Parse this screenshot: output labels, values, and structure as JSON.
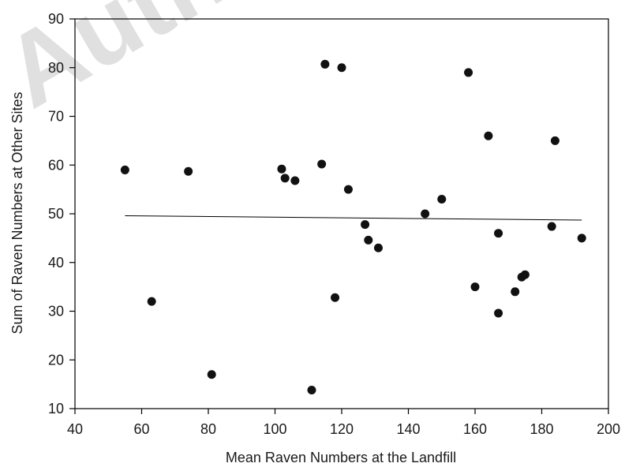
{
  "watermark": "Author's",
  "chart_data": {
    "type": "scatter",
    "xlabel": "Mean Raven Numbers at the Landfill",
    "ylabel": "Sum of Raven Numbers at Other Sites",
    "xlim": [
      40,
      200
    ],
    "ylim": [
      10,
      90
    ],
    "xticks": [
      40,
      60,
      80,
      100,
      120,
      140,
      160,
      180,
      200
    ],
    "yticks": [
      10,
      20,
      30,
      40,
      50,
      60,
      70,
      80,
      90
    ],
    "grid": false,
    "points": [
      {
        "x": 55,
        "y": 59
      },
      {
        "x": 63,
        "y": 32
      },
      {
        "x": 74,
        "y": 58.7
      },
      {
        "x": 81,
        "y": 17
      },
      {
        "x": 102,
        "y": 59.2
      },
      {
        "x": 103,
        "y": 57.3
      },
      {
        "x": 106,
        "y": 56.8
      },
      {
        "x": 111,
        "y": 13.8
      },
      {
        "x": 114,
        "y": 60.2
      },
      {
        "x": 115,
        "y": 80.7
      },
      {
        "x": 118,
        "y": 32.8
      },
      {
        "x": 120,
        "y": 80
      },
      {
        "x": 122,
        "y": 55
      },
      {
        "x": 127,
        "y": 47.8
      },
      {
        "x": 128,
        "y": 44.6
      },
      {
        "x": 131,
        "y": 43
      },
      {
        "x": 145,
        "y": 50
      },
      {
        "x": 150,
        "y": 53
      },
      {
        "x": 158,
        "y": 79
      },
      {
        "x": 160,
        "y": 35
      },
      {
        "x": 164,
        "y": 66
      },
      {
        "x": 167,
        "y": 46
      },
      {
        "x": 167,
        "y": 29.6
      },
      {
        "x": 172,
        "y": 34
      },
      {
        "x": 174,
        "y": 37
      },
      {
        "x": 175,
        "y": 37.5
      },
      {
        "x": 183,
        "y": 47.4
      },
      {
        "x": 184,
        "y": 65
      },
      {
        "x": 192,
        "y": 45
      }
    ],
    "trendline": {
      "x": [
        55,
        192
      ],
      "y": [
        49.6,
        48.7
      ]
    }
  }
}
